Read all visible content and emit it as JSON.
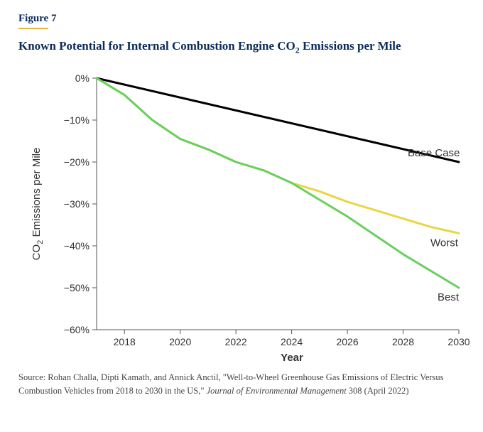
{
  "figure": {
    "label": "Figure 7",
    "title_pre": "Known Potential for Internal Combustion Engine CO",
    "title_sub": "2",
    "title_post": " Emissions per Mile",
    "underline_color": "#e6b84a",
    "title_color": "#0b2b5a"
  },
  "chart": {
    "type": "line",
    "background_color": "#ffffff",
    "axis_color": "#555555",
    "tick_color": "#555555",
    "tick_fontsize": 14,
    "axis_title_fontsize": 15,
    "ylabel_pre": "CO",
    "ylabel_sub": "2",
    "ylabel_post": " Emissions per Mile",
    "xlabel": "Year",
    "x": {
      "min": 2017,
      "max": 2030,
      "ticks": [
        2018,
        2020,
        2022,
        2024,
        2026,
        2028,
        2030
      ]
    },
    "y": {
      "min": -60,
      "max": 0,
      "ticks": [
        0,
        -10,
        -20,
        -30,
        -40,
        -50,
        -60
      ],
      "tick_labels": [
        "0%",
        "−10%",
        "−20%",
        "−30%",
        "−40%",
        "−50%",
        "−60%"
      ]
    },
    "series": [
      {
        "name": "Base Case",
        "color": "#000000",
        "width": 3,
        "label_at": [
          2030,
          -20
        ],
        "label_dx": -72,
        "label_dy": -8,
        "points": [
          [
            2017,
            0
          ],
          [
            2030,
            -20
          ]
        ]
      },
      {
        "name": "Worst",
        "color": "#ead642",
        "width": 3,
        "label_at": [
          2030,
          -37
        ],
        "label_dx": -40,
        "label_dy": 18,
        "points": [
          [
            2017,
            0
          ],
          [
            2018,
            -4
          ],
          [
            2019,
            -10
          ],
          [
            2020,
            -14.5
          ],
          [
            2021,
            -17
          ],
          [
            2022,
            -20
          ],
          [
            2023,
            -22
          ],
          [
            2024,
            -25
          ],
          [
            2025,
            -27
          ],
          [
            2026,
            -29.5
          ],
          [
            2027,
            -31.5
          ],
          [
            2028,
            -33.5
          ],
          [
            2029,
            -35.5
          ],
          [
            2030,
            -37
          ]
        ]
      },
      {
        "name": "Best",
        "color": "#69cf5f",
        "width": 3,
        "label_at": [
          2030,
          -50
        ],
        "label_dx": -30,
        "label_dy": 18,
        "points": [
          [
            2017,
            0
          ],
          [
            2018,
            -4
          ],
          [
            2019,
            -10
          ],
          [
            2020,
            -14.5
          ],
          [
            2021,
            -17
          ],
          [
            2022,
            -20
          ],
          [
            2023,
            -22
          ],
          [
            2024,
            -25
          ],
          [
            2025,
            -29
          ],
          [
            2026,
            -33
          ],
          [
            2027,
            -37.5
          ],
          [
            2028,
            -42
          ],
          [
            2029,
            -46
          ],
          [
            2030,
            -50
          ]
        ]
      }
    ]
  },
  "source": {
    "prefix": "Source: Rohan Challa, Dipti Kamath, and Annick Anctil, \"Well-to-Wheel Greenhouse Gas Emissions of Electric Versus Combustion Vehicles from 2018 to 2030 in the US,\" ",
    "italic": "Journal of Environmental Management",
    "suffix": " 308 (April 2022)"
  }
}
